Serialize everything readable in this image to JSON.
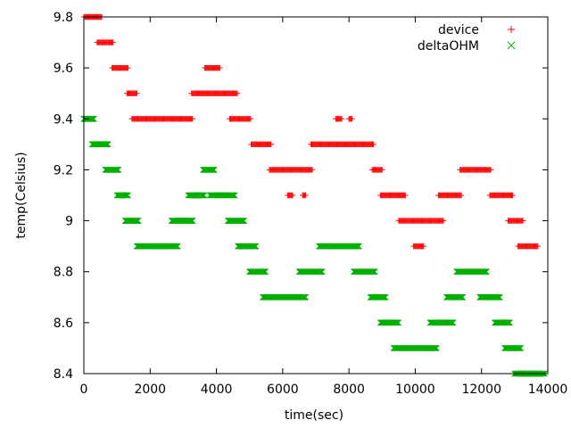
{
  "chart_data": {
    "type": "scatter",
    "xlabel": "time(sec)",
    "ylabel": "temp(Celsius)",
    "xlim": [
      0,
      14000
    ],
    "ylim": [
      8.4,
      9.8
    ],
    "xticks": [
      "0",
      "2000",
      "4000",
      "6000",
      "8000",
      "10000",
      "12000",
      "14000"
    ],
    "yticks": [
      "8.4",
      "8.6",
      "8.8",
      "9",
      "9.2",
      "9.4",
      "9.6",
      "9.8"
    ],
    "grid": false,
    "legend_position": "top-right",
    "series": [
      {
        "name": "device",
        "marker": "plus",
        "color": "#ff0000",
        "segments": [
          {
            "x0": 0,
            "x1": 550,
            "y": 9.8
          },
          {
            "x0": 400,
            "x1": 900,
            "y": 9.7
          },
          {
            "x0": 850,
            "x1": 1350,
            "y": 9.6
          },
          {
            "x0": 1300,
            "x1": 1600,
            "y": 9.5
          },
          {
            "x0": 1450,
            "x1": 3300,
            "y": 9.4
          },
          {
            "x0": 3250,
            "x1": 4650,
            "y": 9.5
          },
          {
            "x0": 3650,
            "x1": 4100,
            "y": 9.6
          },
          {
            "x0": 4400,
            "x1": 5050,
            "y": 9.4
          },
          {
            "x0": 5050,
            "x1": 5650,
            "y": 9.3
          },
          {
            "x0": 5600,
            "x1": 6900,
            "y": 9.2
          },
          {
            "x0": 6150,
            "x1": 6300,
            "y": 9.1
          },
          {
            "x0": 6600,
            "x1": 6700,
            "y": 9.1
          },
          {
            "x0": 6850,
            "x1": 8750,
            "y": 9.3
          },
          {
            "x0": 7600,
            "x1": 7800,
            "y": 9.4
          },
          {
            "x0": 8000,
            "x1": 8100,
            "y": 9.4
          },
          {
            "x0": 8700,
            "x1": 9000,
            "y": 9.2
          },
          {
            "x0": 8950,
            "x1": 9700,
            "y": 9.1
          },
          {
            "x0": 9500,
            "x1": 10850,
            "y": 9.0
          },
          {
            "x0": 9950,
            "x1": 10250,
            "y": 8.9
          },
          {
            "x0": 10700,
            "x1": 11400,
            "y": 9.1
          },
          {
            "x0": 11350,
            "x1": 12300,
            "y": 9.2
          },
          {
            "x0": 12250,
            "x1": 12950,
            "y": 9.1
          },
          {
            "x0": 12800,
            "x1": 13250,
            "y": 9.0
          },
          {
            "x0": 13100,
            "x1": 13700,
            "y": 8.9
          }
        ]
      },
      {
        "name": "deltaOHM",
        "marker": "cross",
        "color": "#00b000",
        "segments": [
          {
            "x0": 0,
            "x1": 300,
            "y": 9.4
          },
          {
            "x0": 250,
            "x1": 750,
            "y": 9.3
          },
          {
            "x0": 650,
            "x1": 1050,
            "y": 9.2
          },
          {
            "x0": 1000,
            "x1": 1350,
            "y": 9.1
          },
          {
            "x0": 1250,
            "x1": 1650,
            "y": 9.0
          },
          {
            "x0": 1600,
            "x1": 2850,
            "y": 8.9
          },
          {
            "x0": 2650,
            "x1": 3300,
            "y": 9.0
          },
          {
            "x0": 3150,
            "x1": 3650,
            "y": 9.1
          },
          {
            "x0": 3600,
            "x1": 3950,
            "y": 9.2
          },
          {
            "x0": 3800,
            "x1": 4550,
            "y": 9.1
          },
          {
            "x0": 4350,
            "x1": 4850,
            "y": 9.0
          },
          {
            "x0": 4650,
            "x1": 5200,
            "y": 8.9
          },
          {
            "x0": 5000,
            "x1": 5500,
            "y": 8.8
          },
          {
            "x0": 5400,
            "x1": 6700,
            "y": 8.7
          },
          {
            "x0": 6500,
            "x1": 7200,
            "y": 8.8
          },
          {
            "x0": 7100,
            "x1": 8300,
            "y": 8.9
          },
          {
            "x0": 8150,
            "x1": 8800,
            "y": 8.8
          },
          {
            "x0": 8650,
            "x1": 9100,
            "y": 8.7
          },
          {
            "x0": 8950,
            "x1": 9500,
            "y": 8.6
          },
          {
            "x0": 9350,
            "x1": 10650,
            "y": 8.5
          },
          {
            "x0": 10450,
            "x1": 11150,
            "y": 8.6
          },
          {
            "x0": 10950,
            "x1": 11450,
            "y": 8.7
          },
          {
            "x0": 11250,
            "x1": 12150,
            "y": 8.8
          },
          {
            "x0": 11950,
            "x1": 12550,
            "y": 8.7
          },
          {
            "x0": 12400,
            "x1": 12850,
            "y": 8.6
          },
          {
            "x0": 12700,
            "x1": 13200,
            "y": 8.5
          },
          {
            "x0": 13000,
            "x1": 13900,
            "y": 8.4
          }
        ]
      }
    ]
  }
}
